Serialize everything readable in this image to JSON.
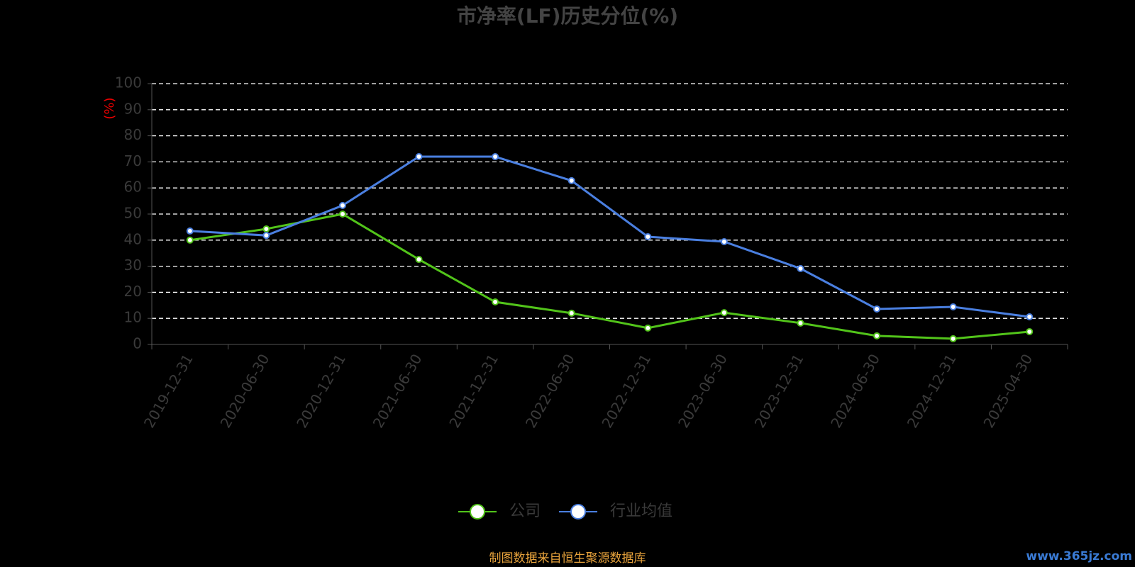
{
  "chart_data": {
    "type": "line",
    "title": "市净率(LF)历史分位(%)",
    "y_label": "(%)",
    "categories": [
      "2019-12-31",
      "2020-06-30",
      "2020-12-31",
      "2021-06-30",
      "2021-12-31",
      "2022-06-30",
      "2022-12-31",
      "2023-06-30",
      "2023-12-31",
      "2024-06-30",
      "2024-12-31",
      "2025-04-30"
    ],
    "series": [
      {
        "name": "公司",
        "color": "#52c41a",
        "values": [
          40,
          44.3,
          50,
          32.6,
          16.3,
          12,
          6.3,
          12.2,
          8.2,
          3.3,
          2.2,
          4.9
        ]
      },
      {
        "name": "行业均值",
        "color": "#4a7fe0",
        "values": [
          43.5,
          41.8,
          53.3,
          72,
          72,
          62.8,
          41.3,
          39.4,
          29.1,
          13.6,
          14.4,
          10.6
        ]
      }
    ],
    "ylim": [
      0,
      100
    ],
    "yticks": [
      0,
      10,
      20,
      30,
      40,
      50,
      60,
      70,
      80,
      90,
      100
    ],
    "grid": true,
    "source": "制图数据来自恒生聚源数据库",
    "watermark": "www.365jz.com"
  }
}
